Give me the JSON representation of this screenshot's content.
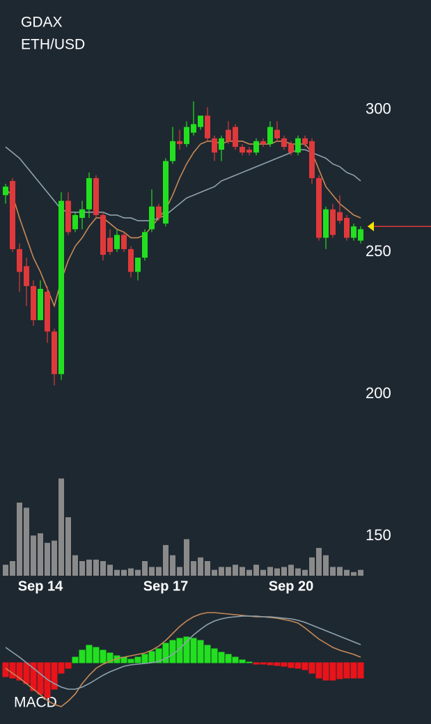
{
  "chart_data": [
    {
      "type": "candlestick",
      "title": "GDAX",
      "subtitle": "ETH/USD",
      "categories": [
        null,
        null,
        null,
        null,
        null,
        "Sep 14",
        null,
        null,
        null,
        null,
        null,
        null,
        null,
        null,
        null,
        null,
        null,
        null,
        null,
        null,
        null,
        null,
        null,
        "Sep 17",
        null,
        null,
        null,
        null,
        null,
        null,
        null,
        null,
        null,
        null,
        null,
        null,
        null,
        null,
        null,
        null,
        null,
        "Sep 20",
        null,
        null,
        null,
        null,
        null,
        null,
        null,
        null,
        null,
        null
      ],
      "open": [
        270,
        275,
        251,
        245,
        238,
        226,
        236,
        222,
        207,
        268,
        258,
        262,
        265,
        276,
        263,
        255,
        251,
        256,
        251,
        243,
        248,
        258,
        266,
        260,
        282,
        289,
        288,
        292,
        294,
        298,
        290,
        286,
        293,
        294,
        287,
        286,
        285,
        289,
        288,
        293,
        290,
        288,
        285,
        290,
        289,
        276,
        255,
        265,
        264,
        262,
        255,
        254
      ],
      "high": [
        274,
        276,
        253,
        248,
        240,
        240,
        238,
        223,
        271,
        271,
        264,
        268,
        278,
        277,
        264,
        258,
        258,
        257,
        252,
        248,
        258,
        272,
        267,
        283,
        294,
        293,
        296,
        303,
        298,
        301,
        291,
        291,
        296,
        295,
        288,
        287,
        290,
        290,
        296,
        296,
        291,
        289,
        291,
        291,
        290,
        277,
        266,
        267,
        270,
        263,
        260,
        259
      ],
      "low": [
        267,
        250,
        236,
        231,
        224,
        226,
        218,
        203,
        205,
        256,
        257,
        258,
        262,
        262,
        247,
        249,
        250,
        250,
        241,
        240,
        247,
        257,
        261,
        259,
        281,
        286,
        287,
        291,
        293,
        289,
        282,
        282,
        288,
        286,
        284,
        284,
        284,
        287,
        287,
        289,
        286,
        284,
        284,
        287,
        274,
        254,
        251,
        255,
        260,
        254,
        254,
        253
      ],
      "close": [
        273,
        251,
        243,
        238,
        226,
        237,
        222,
        207,
        268,
        257,
        263,
        265,
        276,
        263,
        249,
        250,
        256,
        251,
        243,
        248,
        257,
        266,
        262,
        282,
        289,
        288,
        294,
        295,
        298,
        290,
        285,
        290,
        289,
        287,
        285,
        285,
        289,
        288,
        294,
        290,
        287,
        285,
        290,
        288,
        276,
        255,
        265,
        256,
        261,
        255,
        259,
        258
      ],
      "up_color": "#22e01f",
      "down_color": "#e0393b",
      "ylim": [
        135.3,
        338.7
      ],
      "yticks": [
        150,
        200,
        250,
        300
      ],
      "series": [
        {
          "color": "#c98a55",
          "values": [
            272,
            270,
            262,
            255,
            248,
            243,
            237,
            231,
            240,
            247,
            252,
            255,
            259,
            262,
            262,
            260,
            258,
            257,
            255,
            255,
            256,
            259,
            262,
            265,
            270,
            276,
            281,
            285,
            288,
            289,
            289,
            288,
            289,
            289,
            289,
            288,
            288,
            288,
            288,
            289,
            289,
            288,
            288,
            288,
            285,
            279,
            273,
            270,
            267,
            265,
            263,
            262
          ]
        },
        {
          "color": "#8fa3b0",
          "values": [
            287,
            285,
            283,
            280,
            277,
            274,
            271,
            268,
            265,
            264,
            264,
            264,
            264,
            264,
            264,
            263,
            263,
            262,
            262,
            261,
            261,
            261,
            262,
            263,
            265,
            267,
            269,
            270,
            271,
            272,
            273,
            275,
            276,
            277,
            278,
            279,
            280,
            281,
            282,
            283,
            284,
            285,
            286,
            286,
            285,
            284,
            283,
            281,
            280,
            278,
            277,
            275
          ]
        }
      ],
      "volume": {
        "color": "#8a8a8a",
        "lim": [
          0,
          140
        ],
        "values": [
          15,
          20,
          100,
          93,
          55,
          58,
          45,
          48,
          133,
          80,
          28,
          20,
          22,
          22,
          20,
          15,
          8,
          8,
          10,
          8,
          20,
          12,
          12,
          42,
          28,
          12,
          50,
          20,
          25,
          20,
          8,
          12,
          12,
          15,
          12,
          8,
          15,
          8,
          12,
          10,
          12,
          15,
          10,
          8,
          25,
          38,
          28,
          12,
          12,
          8,
          5,
          8
        ]
      },
      "last_price": 259,
      "last_price_color": "#f2e600"
    },
    {
      "type": "macd",
      "title": "MACD",
      "ylim": [
        -68,
        82
      ],
      "up_color": "#22e01f",
      "down_color": "#e8141a",
      "histogram": [
        -20,
        -22,
        -25,
        -30,
        -40,
        -45,
        -50,
        -38,
        -15,
        -8,
        8,
        18,
        25,
        22,
        18,
        14,
        10,
        8,
        5,
        8,
        12,
        16,
        20,
        28,
        32,
        35,
        37,
        35,
        32,
        25,
        20,
        15,
        12,
        8,
        4,
        1,
        -2,
        -2,
        -3,
        -4,
        -5,
        -7,
        -8,
        -10,
        -15,
        -22,
        -25,
        -25,
        -23,
        -22,
        -22,
        -22
      ],
      "series": [
        {
          "color": "#c98a55",
          "values": [
            -8,
            -15,
            -22,
            -30,
            -38,
            -46,
            -54,
            -60,
            -63,
            -55,
            -45,
            -30,
            -18,
            -8,
            -2,
            2,
            6,
            8,
            10,
            12,
            14,
            18,
            24,
            32,
            42,
            52,
            60,
            66,
            70,
            72,
            72,
            71,
            70,
            69,
            68,
            67,
            66,
            66,
            65,
            64,
            62,
            60,
            57,
            50,
            42,
            34,
            28,
            22,
            18,
            15,
            12,
            8
          ]
        },
        {
          "color": "#8fa3b0",
          "values": [
            22,
            15,
            8,
            0,
            -8,
            -16,
            -24,
            -30,
            -35,
            -38,
            -38,
            -35,
            -30,
            -24,
            -18,
            -13,
            -9,
            -5,
            -3,
            -2,
            -1,
            0,
            2,
            6,
            12,
            20,
            30,
            40,
            48,
            55,
            60,
            63,
            65,
            66,
            67,
            67,
            67,
            66,
            66,
            65,
            64,
            63,
            61,
            58,
            54,
            50,
            46,
            42,
            38,
            34,
            30,
            26
          ]
        }
      ]
    }
  ]
}
